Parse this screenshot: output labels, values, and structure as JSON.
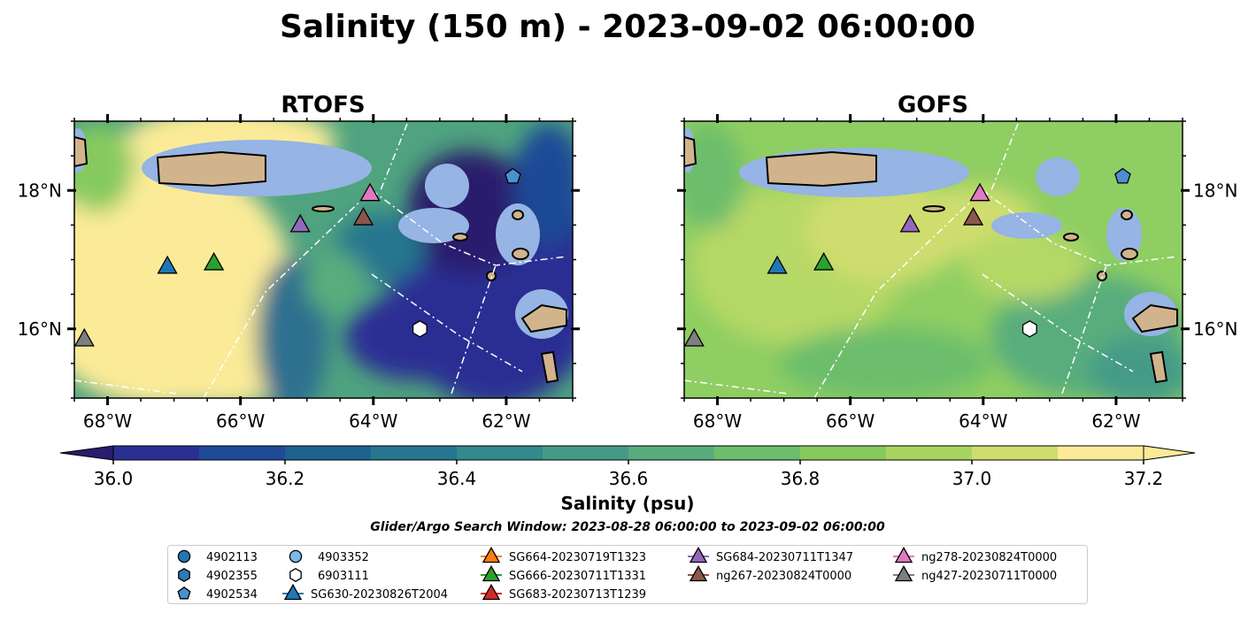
{
  "figure_title": "Salinity (150 m) - 2023-09-02 06:00:00",
  "search_window": "Glider/Argo Search Window: 2023-08-28 06:00:00 to 2023-09-02 06:00:00",
  "chart_data": [
    {
      "type": "heatmap",
      "title": "RTOFS",
      "x_range": [
        -68.5,
        -61
      ],
      "y_range": [
        15,
        19
      ],
      "xticks": [
        "68°W",
        "66°W",
        "64°W",
        "62°W"
      ],
      "xtick_values": [
        -68,
        -66,
        -64,
        -62
      ],
      "yticks": [
        "18°N",
        "16°N"
      ],
      "ytick_values": [
        18,
        16
      ],
      "ytick_side": "left"
    },
    {
      "type": "heatmap",
      "title": "GOFS",
      "x_range": [
        -68.5,
        -61
      ],
      "y_range": [
        15,
        19
      ],
      "xticks": [
        "68°W",
        "66°W",
        "64°W",
        "62°W"
      ],
      "xtick_values": [
        -68,
        -66,
        -64,
        -62
      ],
      "yticks": [
        "18°N",
        "16°N"
      ],
      "ytick_values": [
        18,
        16
      ],
      "ytick_side": "right"
    }
  ],
  "colorbar": {
    "label": "Salinity (psu)",
    "min": 36.0,
    "max": 37.2,
    "step": 0.1,
    "ticks": [
      "36.0",
      "36.2",
      "36.4",
      "36.6",
      "36.8",
      "37.0",
      "37.2"
    ],
    "colors": [
      "#2a1c6c",
      "#2b2f93",
      "#1f4a96",
      "#1d6191",
      "#26768f",
      "#34898c",
      "#449b87",
      "#58ad7d",
      "#6cbd6c",
      "#86ca5e",
      "#a9d460",
      "#cfdd6e",
      "#fbeb98"
    ]
  },
  "observations": [
    {
      "id": "4902113",
      "lon": null,
      "lat": null,
      "marker": "circle",
      "color": "#1f77b4"
    },
    {
      "id": "4902355",
      "lon": null,
      "lat": null,
      "marker": "hexagon",
      "color": "#2b7bba"
    },
    {
      "id": "4902534",
      "lon": -61.9,
      "lat": 18.2,
      "marker": "pentagon",
      "color": "#4a90d0"
    },
    {
      "id": "4903352",
      "lon": null,
      "lat": null,
      "marker": "circle",
      "color": "#7fb7e6"
    },
    {
      "id": "6903111",
      "lon": -63.3,
      "lat": 16.0,
      "marker": "hexagon",
      "color": "#ffffff"
    },
    {
      "id": "SG630-20230826T2004",
      "lon": -67.1,
      "lat": 16.9,
      "marker": "triangle",
      "color": "#1f77b4"
    },
    {
      "id": "SG664-20230719T1323",
      "lon": null,
      "lat": null,
      "marker": "triangle",
      "color": "#ff7f0e"
    },
    {
      "id": "SG666-20230711T1331",
      "lon": -66.4,
      "lat": 16.95,
      "marker": "triangle",
      "color": "#2ca02c"
    },
    {
      "id": "SG683-20230713T1239",
      "lon": null,
      "lat": null,
      "marker": "triangle",
      "color": "#d62728"
    },
    {
      "id": "SG684-20230711T1347",
      "lon": -65.1,
      "lat": 17.5,
      "marker": "triangle",
      "color": "#9467bd"
    },
    {
      "id": "ng267-20230824T0000",
      "lon": -64.15,
      "lat": 17.6,
      "marker": "triangle",
      "color": "#8c564b"
    },
    {
      "id": "ng278-20230824T0000",
      "lon": -64.05,
      "lat": 17.95,
      "marker": "triangle",
      "color": "#e377c2"
    },
    {
      "id": "ng427-20230711T0000",
      "lon": -68.35,
      "lat": 15.85,
      "marker": "triangle",
      "color": "#7f7f7f"
    }
  ],
  "legend_columns": [
    [
      "4902113",
      "4902355",
      "4902534"
    ],
    [
      "4903352",
      "6903111",
      "SG630-20230826T2004"
    ],
    [
      "SG664-20230719T1323",
      "SG666-20230711T1331",
      "SG683-20230713T1239"
    ],
    [
      "SG684-20230711T1347",
      "ng267-20230824T0000"
    ],
    [
      "ng278-20230824T0000",
      "ng427-20230711T0000"
    ]
  ]
}
